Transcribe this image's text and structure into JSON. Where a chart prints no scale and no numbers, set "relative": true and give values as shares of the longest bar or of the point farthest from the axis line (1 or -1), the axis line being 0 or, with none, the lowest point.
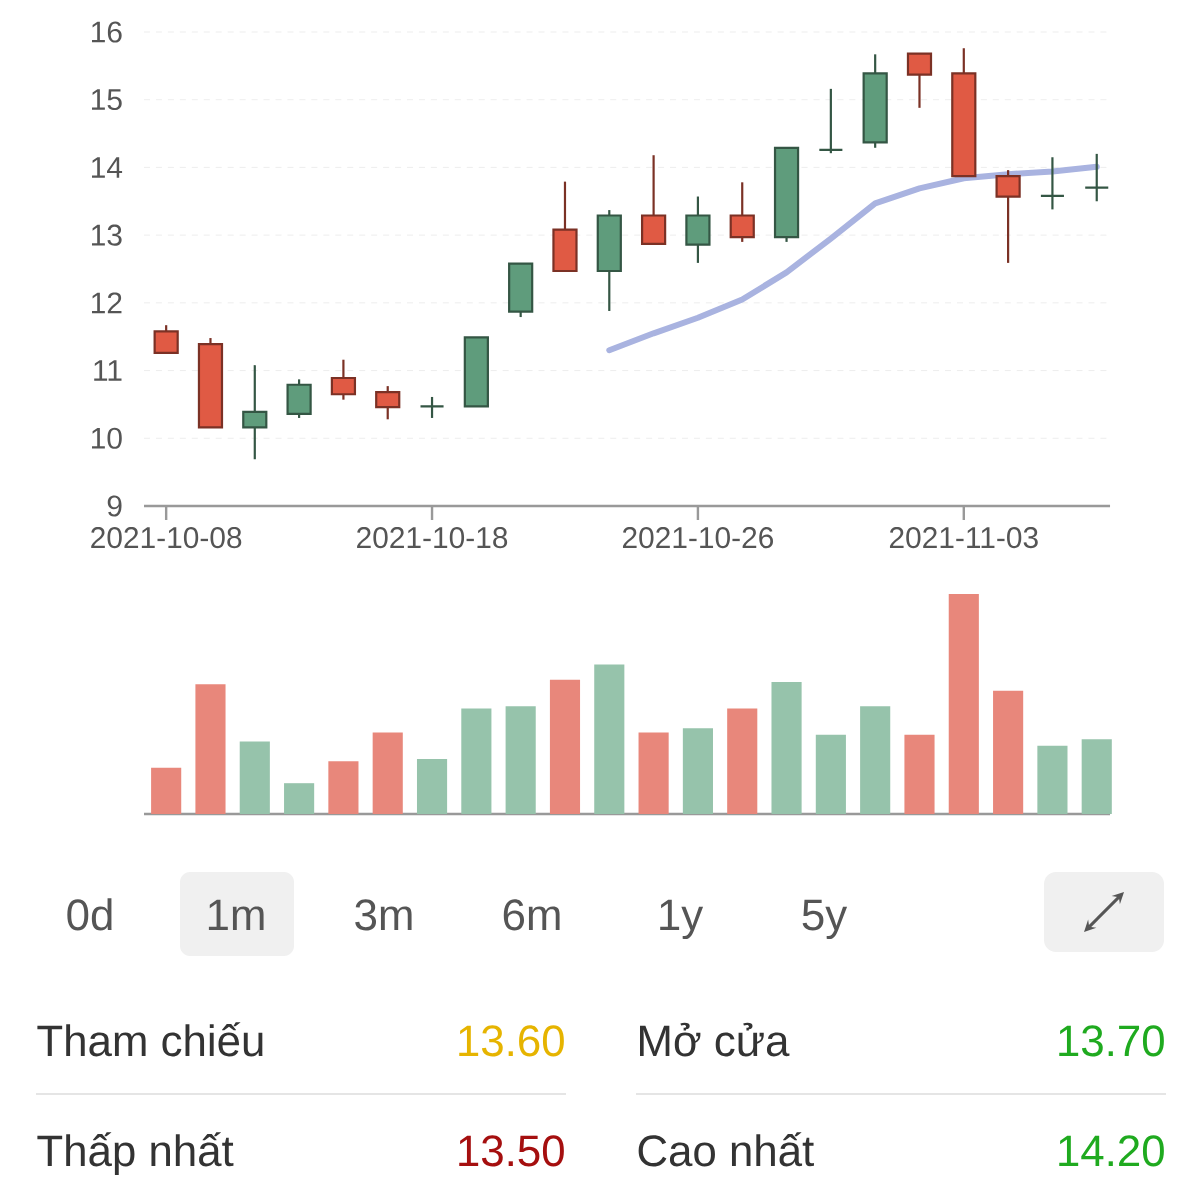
{
  "chart_data": [
    {
      "type": "candlestick",
      "categories": [
        "2021-10-08",
        null,
        null,
        null,
        null,
        null,
        "2021-10-18",
        null,
        null,
        null,
        null,
        null,
        "2021-10-26",
        null,
        null,
        null,
        null,
        null,
        "2021-11-03",
        null,
        null,
        null
      ],
      "ohlc": [
        [
          11.58,
          11.67,
          11.26,
          11.26
        ],
        [
          11.39,
          11.48,
          10.16,
          10.16
        ],
        [
          10.16,
          11.08,
          9.69,
          10.39
        ],
        [
          10.36,
          10.87,
          10.3,
          10.79
        ],
        [
          10.89,
          11.16,
          10.57,
          10.65
        ],
        [
          10.68,
          10.77,
          10.28,
          10.46
        ],
        [
          10.47,
          10.61,
          10.3,
          10.47
        ],
        [
          10.47,
          11.49,
          10.47,
          11.49
        ],
        [
          11.87,
          12.58,
          11.79,
          12.58
        ],
        [
          13.08,
          13.79,
          12.47,
          12.47
        ],
        [
          12.47,
          13.37,
          11.88,
          13.29
        ],
        [
          13.29,
          14.18,
          12.87,
          12.87
        ],
        [
          12.86,
          13.57,
          12.59,
          13.29
        ],
        [
          13.29,
          13.78,
          12.9,
          12.97
        ],
        [
          12.97,
          14.29,
          12.9,
          14.29
        ],
        [
          14.26,
          15.16,
          14.21,
          14.26
        ],
        [
          14.37,
          15.67,
          14.29,
          15.39
        ],
        [
          15.68,
          15.68,
          14.88,
          15.37
        ],
        [
          15.39,
          15.76,
          13.87,
          13.87
        ],
        [
          13.87,
          13.96,
          12.59,
          13.57
        ],
        [
          13.58,
          14.15,
          13.38,
          13.58
        ],
        [
          13.7,
          14.2,
          13.5,
          13.7
        ]
      ],
      "colors": [
        "#e05a44",
        "#e05a44",
        "#5f9c7c",
        "#5f9c7c",
        "#e05a44",
        "#e05a44",
        "#345644",
        "#5f9c7c",
        "#5f9c7c",
        "#e05a44",
        "#5f9c7c",
        "#e05a44",
        "#5f9c7c",
        "#e05a44",
        "#5f9c7c",
        "#345644",
        "#5f9c7c",
        "#e05a44",
        "#e05a44",
        "#e05a44",
        "#345644",
        "#345644"
      ],
      "series": [
        {
          "type": "line",
          "color": "#a9b3e0",
          "values": [
            null,
            null,
            null,
            null,
            null,
            null,
            null,
            null,
            null,
            null,
            11.3,
            11.55,
            11.78,
            12.05,
            12.45,
            12.95,
            13.47,
            13.69,
            13.84,
            13.9,
            13.94,
            14.01
          ]
        }
      ],
      "ylim": [
        9,
        16
      ],
      "yticks": [
        9,
        10,
        11,
        12,
        13,
        14,
        15,
        16
      ],
      "grid": "y"
    },
    {
      "type": "bar",
      "relative": true,
      "categories": [
        null,
        null,
        null,
        null,
        null,
        null,
        null,
        null,
        null,
        null,
        null,
        null,
        null,
        null,
        null,
        null,
        null,
        null,
        null,
        null,
        null,
        null
      ],
      "values": [
        0.21,
        0.59,
        0.33,
        0.14,
        0.24,
        0.37,
        0.25,
        0.48,
        0.49,
        0.61,
        0.68,
        0.37,
        0.39,
        0.48,
        0.6,
        0.36,
        0.49,
        0.36,
        1,
        0.56,
        0.31,
        0.34
      ],
      "colors": [
        "#e8877b",
        "#e8877b",
        "#96c3ab",
        "#96c3ab",
        "#e8877b",
        "#e8877b",
        "#96c3ab",
        "#96c3ab",
        "#96c3ab",
        "#e8877b",
        "#96c3ab",
        "#e8877b",
        "#96c3ab",
        "#e8877b",
        "#96c3ab",
        "#96c3ab",
        "#96c3ab",
        "#e8877b",
        "#e8877b",
        "#e8877b",
        "#96c3ab",
        "#96c3ab"
      ]
    },
    {
      "type": "other",
      "annotations": [
        "0d",
        "1m",
        "3m",
        "6m",
        "1y",
        "5y",
        "Tham chiếu",
        "13.60",
        "Mở cửa",
        "13.70",
        "Thấp nhất",
        "13.50",
        "Cao nhất",
        "14.20"
      ],
      "colors": [
        null,
        null,
        null,
        null,
        null,
        null,
        null,
        "#e6b400",
        null,
        "#1faa1f",
        null,
        "#a50f0f",
        null,
        "#1faa1f"
      ]
    }
  ]
}
